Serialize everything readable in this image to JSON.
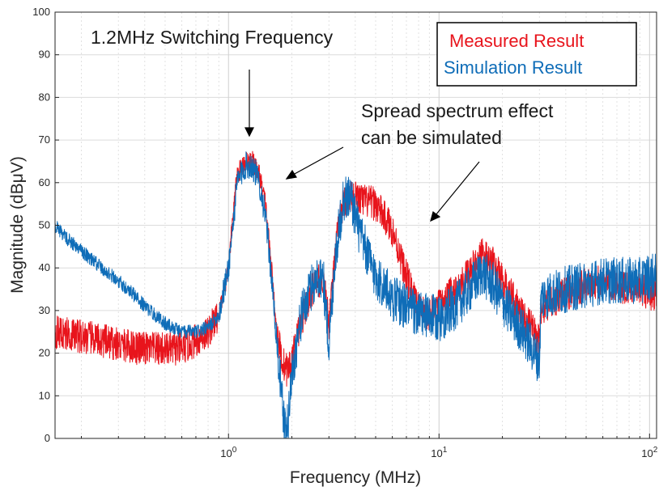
{
  "chart_data": {
    "type": "line",
    "title": "",
    "xlabel": "Frequency (MHz)",
    "ylabel": "Magnitude (dBμV)",
    "xscale": "log",
    "xlim": [
      0.15,
      108
    ],
    "ylim": [
      0,
      100
    ],
    "xticks": [
      {
        "value": 1,
        "base": "10",
        "exp": "0"
      },
      {
        "value": 10,
        "base": "10",
        "exp": "1"
      },
      {
        "value": 100,
        "base": "10",
        "exp": "2"
      }
    ],
    "yticks": [
      "0",
      "10",
      "20",
      "30",
      "40",
      "50",
      "60",
      "70",
      "80",
      "90",
      "100"
    ],
    "grid": true,
    "legend_position": "top-right",
    "series": [
      {
        "name": "Measured Result",
        "color": "#e8141c",
        "noise": 4.0,
        "points": [
          [
            0.15,
            25
          ],
          [
            0.2,
            24
          ],
          [
            0.3,
            22
          ],
          [
            0.4,
            21
          ],
          [
            0.5,
            21
          ],
          [
            0.6,
            21
          ],
          [
            0.7,
            23
          ],
          [
            0.8,
            25
          ],
          [
            0.9,
            29
          ],
          [
            1.0,
            40
          ],
          [
            1.05,
            52
          ],
          [
            1.1,
            62
          ],
          [
            1.2,
            65
          ],
          [
            1.3,
            65
          ],
          [
            1.4,
            62
          ],
          [
            1.5,
            55
          ],
          [
            1.6,
            40
          ],
          [
            1.7,
            25
          ],
          [
            1.8,
            18
          ],
          [
            1.9,
            16
          ],
          [
            2.0,
            18
          ],
          [
            2.2,
            27
          ],
          [
            2.5,
            35
          ],
          [
            2.8,
            38
          ],
          [
            3.0,
            27
          ],
          [
            3.2,
            44
          ],
          [
            3.5,
            55
          ],
          [
            3.8,
            57
          ],
          [
            4.2,
            56
          ],
          [
            5.0,
            55
          ],
          [
            6.0,
            49
          ],
          [
            7.0,
            38
          ],
          [
            8.0,
            30
          ],
          [
            9.0,
            29
          ],
          [
            10,
            31
          ],
          [
            12,
            35
          ],
          [
            14,
            39
          ],
          [
            16,
            43
          ],
          [
            18,
            41
          ],
          [
            20,
            37
          ],
          [
            25,
            29
          ],
          [
            30,
            23
          ],
          [
            30.5,
            30
          ],
          [
            40,
            34
          ],
          [
            50,
            36
          ],
          [
            60,
            37
          ],
          [
            70,
            36
          ],
          [
            80,
            35
          ],
          [
            90,
            35
          ],
          [
            100,
            34
          ],
          [
            108,
            34
          ]
        ]
      },
      {
        "name": "Simulation Result",
        "color": "#0f6db8",
        "noise": 5.5,
        "points": [
          [
            0.15,
            50
          ],
          [
            0.17,
            47
          ],
          [
            0.2,
            44
          ],
          [
            0.25,
            40
          ],
          [
            0.3,
            37
          ],
          [
            0.35,
            34
          ],
          [
            0.4,
            31
          ],
          [
            0.5,
            27
          ],
          [
            0.6,
            25
          ],
          [
            0.7,
            25
          ],
          [
            0.8,
            26
          ],
          [
            0.9,
            29
          ],
          [
            1.0,
            40
          ],
          [
            1.05,
            50
          ],
          [
            1.1,
            60
          ],
          [
            1.2,
            64
          ],
          [
            1.3,
            64
          ],
          [
            1.4,
            60
          ],
          [
            1.5,
            52
          ],
          [
            1.6,
            38
          ],
          [
            1.7,
            22
          ],
          [
            1.8,
            8
          ],
          [
            1.85,
            2
          ],
          [
            1.9,
            2
          ],
          [
            2.0,
            15
          ],
          [
            2.2,
            28
          ],
          [
            2.5,
            36
          ],
          [
            2.8,
            39
          ],
          [
            3.0,
            22
          ],
          [
            3.2,
            42
          ],
          [
            3.5,
            56
          ],
          [
            3.8,
            57
          ],
          [
            4.2,
            48
          ],
          [
            5.0,
            38
          ],
          [
            6.0,
            33
          ],
          [
            7.0,
            31
          ],
          [
            8.0,
            29
          ],
          [
            10,
            28
          ],
          [
            12,
            31
          ],
          [
            14,
            35
          ],
          [
            16,
            39
          ],
          [
            18,
            36
          ],
          [
            20,
            32
          ],
          [
            25,
            25
          ],
          [
            30,
            18
          ],
          [
            30.5,
            33
          ],
          [
            40,
            35
          ],
          [
            50,
            36
          ],
          [
            60,
            37
          ],
          [
            70,
            37
          ],
          [
            80,
            37
          ],
          [
            90,
            37
          ],
          [
            100,
            38
          ],
          [
            108,
            38
          ]
        ]
      }
    ],
    "annotations": {
      "headline": "1.2MHz Switching Frequency",
      "note_line1": "Spread spectrum effect",
      "note_line2": "can be simulated"
    }
  }
}
